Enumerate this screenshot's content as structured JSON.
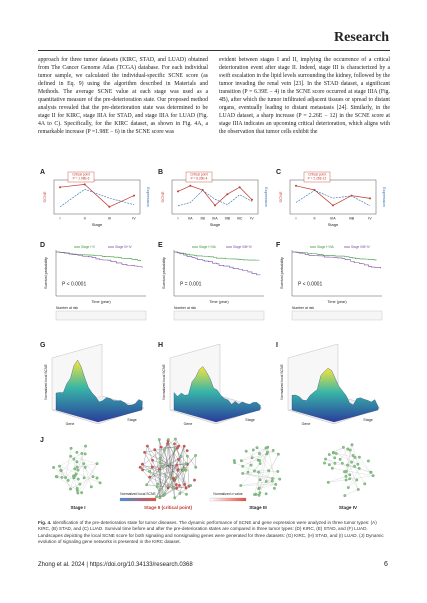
{
  "header": {
    "journal": "Research"
  },
  "body": {
    "left": "approach for three tumor datasets (KIRC, STAD, and LUAD) obtained from The Cancer Genome Atlas (TCGA) database. For each individual tumor sample, we calculated the individual-specific SCNE score (as defined in Eq. 9) using the algorithm described in Materials and Methods. The average SCNE value at each stage was used as a quantitative measure of the pre-deterioration state. Our proposed method analysis revealed that the pre-deterioration state was determined to be stage II for KIRC, stage IIIA for STAD, and stage IIIA for LUAD (Fig. 4A to C). Specifically, for the KIRC dataset, as shown in Fig. 4A, a remarkable increase (P =1.98E − 6) in the SCNE score was",
    "right": "evident between stages I and II, implying the occurrence of a critical deterioration event after stage II. Indeed, stage III is characterized by a swift escalation in the lipid levels surrounding the kidney, followed by the tumor invading the renal vein [23]. In the STAD dataset, a significant transition (P = 6.39E − 4) in the SCNE score occurred at stage IIIA (Fig. 4B), after which the tumor infiltrated adjacent tissues or spread to distant organs, eventually leading to distant metastasis [24]. Similarly, in the LUAD dataset, a sharp increase (P = 2.26E − 12) in the SCNE score at stage IIIA indicates an upcoming critical deterioration, which aligns with the observation that tumor cells exhibit the"
  },
  "figure": {
    "trend_panels": [
      {
        "label": "A",
        "y_label": "SCNE",
        "y2_label": "Expression",
        "x_label": "Stage",
        "stages": [
          "I",
          "II",
          "III",
          "IV"
        ],
        "annotation": "Critical point",
        "p_value": "P = 1.98E-6"
      },
      {
        "label": "B",
        "y_label": "SCNE",
        "y2_label": "Expression",
        "x_label": "Stage",
        "stages": [
          "I",
          "IIA",
          "IIB",
          "IIIA",
          "IIIB",
          "IIIC",
          "IV"
        ],
        "annotation": "Critical point",
        "p_value": "P = 6.39E-4"
      },
      {
        "label": "C",
        "y_label": "SCNE",
        "y2_label": "Expression",
        "x_label": "Stage",
        "stages": [
          "I",
          "II",
          "IIIA",
          "IIIB",
          "IV"
        ],
        "annotation": "Critical point",
        "p_value": "P = 2.26E-12"
      }
    ],
    "survival_panels": [
      {
        "label": "D",
        "y_label": "Survival probability",
        "x_label": "Time (year)",
        "p_value": "P < 0.0001",
        "legend": [
          "Stage I+II",
          "Stage III+IV"
        ],
        "risk_title": "Number at risk"
      },
      {
        "label": "E",
        "y_label": "Survival probability",
        "x_label": "Time (year)",
        "p_value": "P = 0.001",
        "legend": [
          "Stage I+IIIA",
          "Stage IIIB+IV"
        ],
        "risk_title": "Number at risk"
      },
      {
        "label": "F",
        "y_label": "Survival probability",
        "x_label": "Time (year)",
        "p_value": "P < 0.0001",
        "legend": [
          "Stage I+IIIA",
          "Stage IIIB+IV"
        ],
        "risk_title": "Number at risk"
      }
    ],
    "landscape_panels": [
      {
        "label": "G",
        "z_label": "Normalized local SCNE",
        "x_label": "Gene",
        "y_label": "Stage"
      },
      {
        "label": "H",
        "z_label": "Normalized local SCNE",
        "x_label": "Gene",
        "y_label": "Stage"
      },
      {
        "label": "I",
        "z_label": "Normalized local SCNE",
        "x_label": "Gene",
        "y_label": "Stage"
      }
    ],
    "network_panel": {
      "label": "J",
      "stages": [
        "Stage I",
        "Stage II (critical point)",
        "Stage III",
        "Stage IV"
      ],
      "colorbars": [
        "Normalized local SCNE",
        "Normalized σ value"
      ]
    }
  },
  "caption": {
    "label": "Fig. 4.",
    "text": "Identification of the pre-deterioration state for tumor diseases. The dynamic performance of SCNE and gene expression were analyzed in three tumor types: (A) KIRC, (B) STAD, and (C) LUAD. Survival time before and after the pre-deterioration states are compared in three tumor types: (D) KIRC, (E) STAD, and (F) LUAD. Landscapes depicting the local SCNE score for both signaling and nonsignaling genes were generated for three datasets: (G) KIRC, (H) STAD, and (I) LUAD. (J) Dynamic evolution of signaling gene networks is presented in the KIRC dataset."
  },
  "footer": {
    "citation": "Zhong et al. 2024 | https://doi.org/10.34133/research.0368",
    "page": "6"
  }
}
